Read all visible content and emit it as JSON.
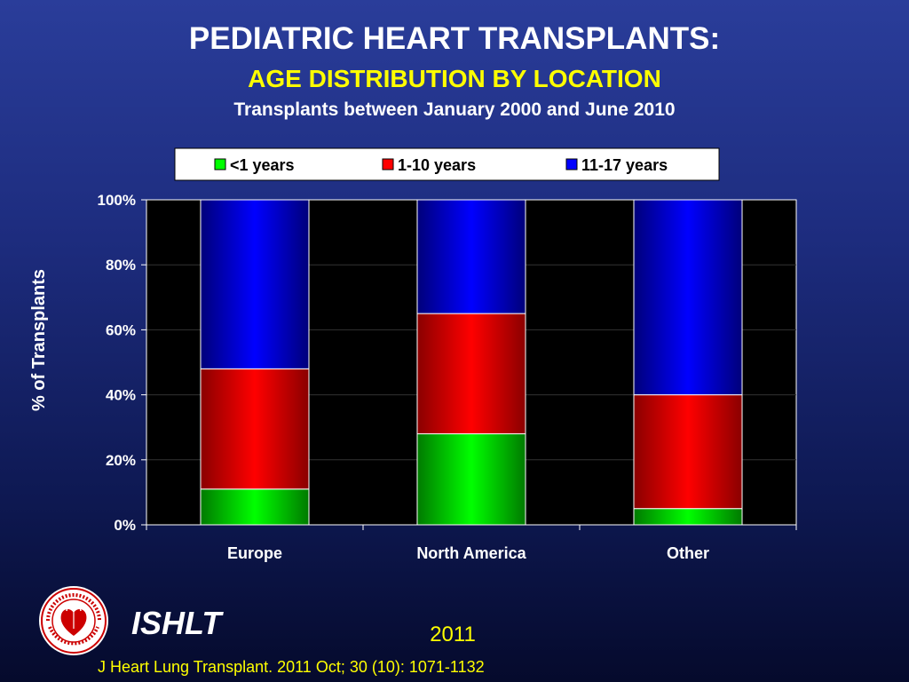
{
  "header": {
    "title": "PEDIATRIC HEART TRANSPLANTS:",
    "subtitle": "AGE DISTRIBUTION BY LOCATION",
    "subtitle2": "Transplants between January 2000 and June 2010"
  },
  "colors": {
    "less_than_1": "#00ff00",
    "one_to_ten": "#ff0000",
    "eleven_to_seventeen": "#0000ff",
    "accent_yellow": "#ffff00"
  },
  "chart_data": {
    "type": "bar",
    "stacked": true,
    "categories": [
      "Europe",
      "North America",
      "Other"
    ],
    "series": [
      {
        "name": "<1 years",
        "values": [
          11,
          28,
          5
        ]
      },
      {
        "name": "1-10 years",
        "values": [
          37,
          37,
          35
        ]
      },
      {
        "name": "11-17 years",
        "values": [
          52,
          35,
          60
        ]
      }
    ],
    "ylabel": "% of Transplants",
    "yticks": [
      "0%",
      "20%",
      "40%",
      "60%",
      "80%",
      "100%"
    ],
    "ylim": [
      0,
      100
    ],
    "legend_position": "top",
    "grid": false
  },
  "footer": {
    "brand": "ISHLT",
    "year": "2011",
    "citation": "J Heart Lung Transplant. 2011 Oct; 30 (10): 1071-1132",
    "logo_text": "INTERNATIONAL SOCIETY FOR HEART & LUNG TRANSPLANTATION"
  }
}
